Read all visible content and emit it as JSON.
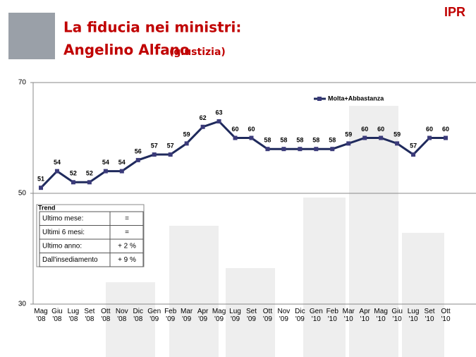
{
  "header": {
    "title": "La fiducia nei ministri:",
    "name": "Angelino Alfano",
    "subtitle": "(giustizia)",
    "logo": "IPR"
  },
  "chart_data": {
    "type": "line",
    "categories": [
      "Mag '08",
      "Giu '08",
      "Lug '08",
      "Set '08",
      "Ott '08",
      "Nov '08",
      "Dic '08",
      "Gen '09",
      "Feb '09",
      "Mar '09",
      "Apr '09",
      "Mag '09",
      "Lug '09",
      "Set '09",
      "Ott '09",
      "Nov '09",
      "Dic '09",
      "Gen '10",
      "Feb '10",
      "Mar '10",
      "Apr '10",
      "Mag '10",
      "Giu '10",
      "Lug '10",
      "Set '10",
      "Ott '10"
    ],
    "series": [
      {
        "name": "Molta+Abbastanza",
        "color": "#1f2a5c",
        "values": [
          51,
          54,
          52,
          52,
          54,
          54,
          56,
          57,
          57,
          59,
          62,
          63,
          60,
          60,
          58,
          58,
          58,
          58,
          58,
          59,
          60,
          60,
          59,
          57,
          60,
          60
        ]
      }
    ],
    "ylim": [
      30,
      70
    ],
    "yticks": [
      30,
      50,
      70
    ],
    "legend": "upper right"
  },
  "trend": {
    "title": "Trend",
    "rows": [
      [
        "Ultimo mese:",
        "="
      ],
      [
        "Ultimi 6 mesi:",
        "="
      ],
      [
        "Ultimo anno:",
        "+ 2 %"
      ],
      [
        "Dall'insediamento",
        "+ 9 %"
      ]
    ]
  }
}
